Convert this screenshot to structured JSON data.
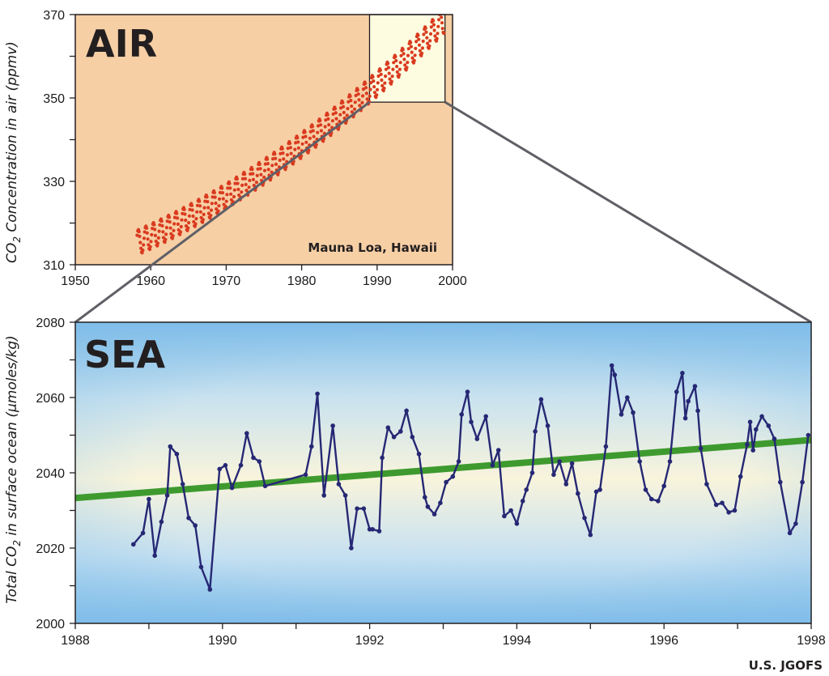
{
  "colors": {
    "air_bg": "#f7cfa5",
    "zoom_bg": "#fdfbe0",
    "air_dots": "#d93a1f",
    "sea_line": "#262874",
    "trend": "#3e9a2e",
    "sea_blue": "#7fbde9",
    "sea_pale": "#f8f4dc",
    "connector": "#5f5f66"
  },
  "credit": "U.S. JGOFS",
  "chart_data": [
    {
      "type": "scatter",
      "title": "AIR",
      "annotation": "Mauna Loa, Hawaii",
      "ylabel": {
        "prefix": "CO",
        "sub": "2",
        "suffix": " Concentration in air (ppmv)"
      },
      "xlim": [
        1950,
        2000
      ],
      "ylim": [
        310,
        370
      ],
      "xticks": [
        1950,
        1960,
        1970,
        1980,
        1990,
        2000
      ],
      "yticks": [
        310,
        330,
        350,
        370
      ],
      "yticks_labeled": [
        310,
        330,
        350,
        370
      ],
      "series": {
        "name": "Mauna Loa monthly CO2",
        "start_year": 1958.2,
        "end_year": 1998.9,
        "step_years": 0.0833,
        "start_value": 315.3,
        "linear_rate_ppmv_per_yr": 0.8,
        "quadratic_coef": 0.0125,
        "seasonal_amplitude": 3.0
      },
      "zoom_window": {
        "x": [
          1989,
          1999
        ],
        "y": [
          349,
          370
        ]
      }
    },
    {
      "type": "line",
      "title": "SEA",
      "ylabel": {
        "prefix": "Total CO",
        "sub": "2",
        "suffix": " in surface ocean (µmoles/kg)"
      },
      "xlim": [
        1988,
        1998
      ],
      "ylim": [
        2000,
        2080
      ],
      "xticks": [
        1988,
        1989,
        1990,
        1991,
        1992,
        1993,
        1994,
        1995,
        1996,
        1997,
        1998
      ],
      "xticks_labeled": [
        1988,
        1990,
        1992,
        1994,
        1996,
        1998
      ],
      "yticks": [
        2000,
        2010,
        2020,
        2030,
        2040,
        2050,
        2060,
        2070,
        2080
      ],
      "yticks_labeled": [
        2000,
        2020,
        2040,
        2060,
        2080
      ],
      "trend": {
        "x": [
          1988,
          1998
        ],
        "y": [
          2033.3,
          2048.7
        ]
      },
      "series": [
        {
          "name": "Total CO2 surface ocean",
          "x": [
            1988.79,
            1988.92,
            1989.0,
            1989.08,
            1989.17,
            1989.25,
            1989.29,
            1989.38,
            1989.46,
            1989.54,
            1989.63,
            1989.71,
            1989.83,
            1989.96,
            1990.04,
            1990.13,
            1990.25,
            1990.33,
            1990.42,
            1990.5,
            1990.58,
            1991.13,
            1991.21,
            1991.29,
            1991.38,
            1991.5,
            1991.58,
            1991.67,
            1991.75,
            1991.83,
            1991.92,
            1992.0,
            1992.04,
            1992.13,
            1992.17,
            1992.25,
            1992.33,
            1992.42,
            1992.5,
            1992.58,
            1992.67,
            1992.75,
            1992.79,
            1992.88,
            1992.96,
            1993.04,
            1993.13,
            1993.21,
            1993.25,
            1993.33,
            1993.38,
            1993.46,
            1993.58,
            1993.67,
            1993.75,
            1993.83,
            1993.92,
            1994.0,
            1994.08,
            1994.13,
            1994.21,
            1994.25,
            1994.33,
            1994.42,
            1994.5,
            1994.58,
            1994.67,
            1994.75,
            1994.83,
            1994.92,
            1995.0,
            1995.08,
            1995.13,
            1995.21,
            1995.29,
            1995.33,
            1995.42,
            1995.5,
            1995.58,
            1995.67,
            1995.75,
            1995.83,
            1995.92,
            1996.0,
            1996.08,
            1996.17,
            1996.25,
            1996.29,
            1996.33,
            1996.42,
            1996.46,
            1996.5,
            1996.58,
            1996.71,
            1996.79,
            1996.88,
            1996.96,
            1997.04,
            1997.13,
            1997.17,
            1997.21,
            1997.25,
            1997.33,
            1997.42,
            1997.5,
            1997.58,
            1997.71,
            1997.79,
            1997.88,
            1997.96
          ],
          "y": [
            2021,
            2024,
            2033,
            2018,
            2027,
            2034,
            2047,
            2045,
            2037,
            2028,
            2026,
            2015,
            2009,
            2041,
            2042,
            2036,
            2042,
            2050.5,
            2044,
            2043,
            2036.5,
            2039.5,
            2047,
            2061,
            2034,
            2052.5,
            2037,
            2034,
            2020,
            2030.5,
            2030.5,
            2025,
            2025,
            2024.5,
            2044,
            2052,
            2049.5,
            2051,
            2056.5,
            2049.5,
            2045,
            2033.5,
            2031,
            2029,
            2032,
            2037.5,
            2039,
            2043,
            2055.5,
            2061.5,
            2053.5,
            2049,
            2055,
            2042,
            2046,
            2028.5,
            2030,
            2026.5,
            2032.5,
            2035.5,
            2040,
            2051,
            2059.5,
            2052.5,
            2039.5,
            2043,
            2037,
            2042.5,
            2034.5,
            2028,
            2023.5,
            2035,
            2035.5,
            2047,
            2068.5,
            2066,
            2055.5,
            2060,
            2056,
            2043,
            2035.5,
            2033,
            2032.5,
            2036.5,
            2043,
            2061.5,
            2066.5,
            2054.5,
            2059,
            2063,
            2056.5,
            2046.5,
            2037,
            2031.5,
            2032,
            2029.5,
            2030,
            2039,
            2047.5,
            2053.5,
            2046,
            2051.5,
            2055,
            2052.5,
            2049,
            2037.5,
            2024,
            2026.5,
            2037.5,
            2050
          ]
        }
      ]
    }
  ]
}
